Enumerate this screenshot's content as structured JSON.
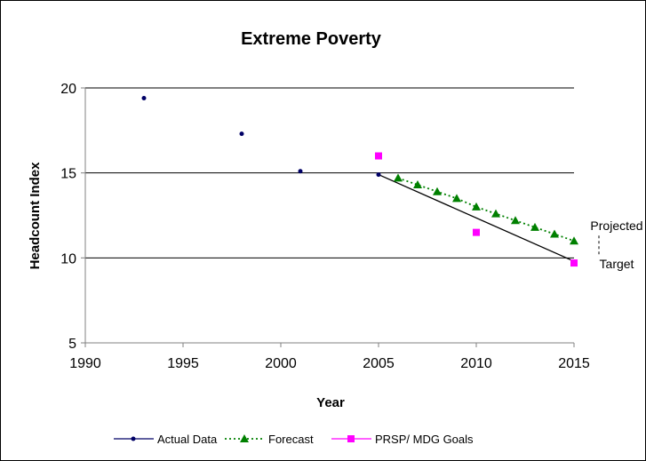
{
  "chart_data": {
    "type": "line",
    "title": "Extreme Poverty",
    "xlabel": "Year",
    "ylabel": "Headcount Index",
    "xlim": [
      1990,
      2015
    ],
    "ylim": [
      5,
      20
    ],
    "xticks": [
      "1990",
      "1995",
      "2000",
      "2005",
      "2010",
      "2015"
    ],
    "yticks": [
      "5",
      "10",
      "15",
      "20"
    ],
    "grid": "horizontal",
    "legend_position": "bottom",
    "series": [
      {
        "name": "Actual Data",
        "color": "#000066",
        "marker": "circle",
        "line": "none",
        "points": [
          [
            1993,
            19.4
          ],
          [
            1998,
            17.3
          ],
          [
            2001,
            15.1
          ],
          [
            2005,
            14.9
          ]
        ]
      },
      {
        "name": "Forecast",
        "color": "#008000",
        "marker": "triangle",
        "line": "dotted",
        "points": [
          [
            2006,
            14.7
          ],
          [
            2007,
            14.3
          ],
          [
            2008,
            13.9
          ],
          [
            2009,
            13.5
          ],
          [
            2010,
            13.0
          ],
          [
            2011,
            12.6
          ],
          [
            2012,
            12.2
          ],
          [
            2013,
            11.8
          ],
          [
            2014,
            11.4
          ],
          [
            2015,
            11.0
          ]
        ]
      },
      {
        "name": "PRSP/ MDG Goals",
        "color": "#ff00ff",
        "marker": "square",
        "line": "none",
        "points": [
          [
            2005,
            16.0
          ],
          [
            2010,
            11.5
          ],
          [
            2015,
            9.7
          ]
        ]
      }
    ],
    "target_line": {
      "points": [
        [
          2005,
          14.9
        ],
        [
          2015,
          9.8
        ]
      ],
      "color": "#000000"
    },
    "annotations": [
      {
        "text": "Projected",
        "x": 2015,
        "y": 11.0
      },
      {
        "text": "Target",
        "x": 2015,
        "y": 9.7
      }
    ]
  }
}
